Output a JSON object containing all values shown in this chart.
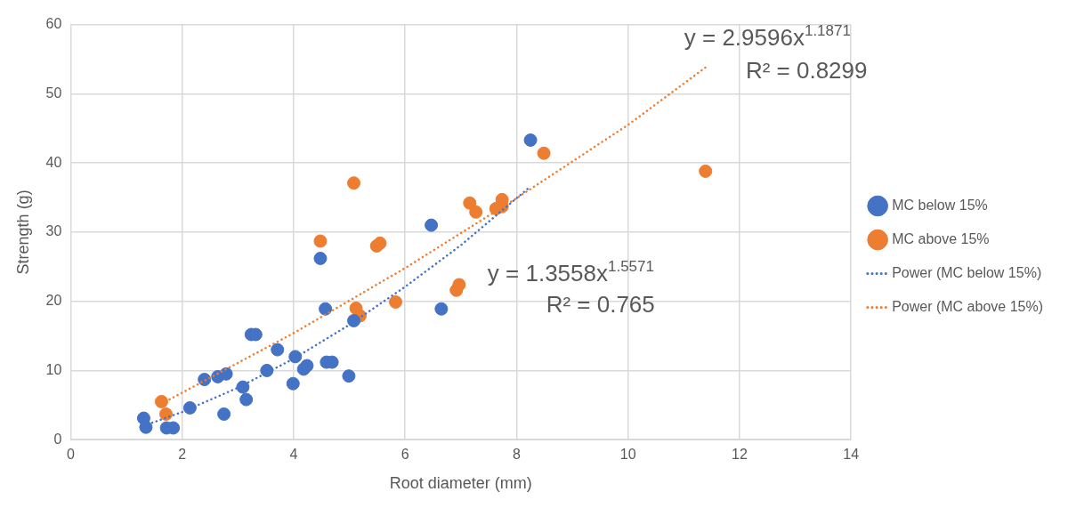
{
  "chart_data": {
    "type": "scatter",
    "xlabel": "Root diameter (mm)",
    "ylabel": "Strength (g)",
    "xlim": [
      0,
      14
    ],
    "xticks": [
      0,
      2,
      4,
      6,
      8,
      10,
      12,
      14
    ],
    "ylim": [
      0,
      60
    ],
    "yticks": [
      0,
      10,
      20,
      30,
      40,
      50,
      60
    ],
    "grid": true,
    "legend": "right",
    "marker": "circle",
    "series": [
      {
        "name": "MC below 15%",
        "color": "#4472c4",
        "type": "scatter",
        "x": [
          1.31,
          1.35,
          1.72,
          1.84,
          2.14,
          2.4,
          2.64,
          2.75,
          2.79,
          3.09,
          3.15,
          3.24,
          3.32,
          3.52,
          3.71,
          3.99,
          4.03,
          4.18,
          4.24,
          4.48,
          4.57,
          4.59,
          4.69,
          4.99,
          5.08,
          6.47,
          6.65,
          8.25
        ],
        "values": [
          3.1,
          1.8,
          1.7,
          1.7,
          4.6,
          8.7,
          9.1,
          3.7,
          9.5,
          7.6,
          5.8,
          15.2,
          15.2,
          10.0,
          13.0,
          8.1,
          12.0,
          10.2,
          10.7,
          26.2,
          18.9,
          11.2,
          11.2,
          9.2,
          17.2,
          31.0,
          18.9,
          43.3
        ]
      },
      {
        "name": "MC above 15%",
        "color": "#ed7d31",
        "type": "scatter",
        "x": [
          1.63,
          1.71,
          4.48,
          5.08,
          5.12,
          5.19,
          5.49,
          5.55,
          5.83,
          6.92,
          6.97,
          7.16,
          7.27,
          7.63,
          7.74,
          7.74,
          8.49,
          11.39
        ],
        "values": [
          5.5,
          3.7,
          28.7,
          37.1,
          19.0,
          17.9,
          28.0,
          28.4,
          19.9,
          21.6,
          22.4,
          34.2,
          32.9,
          33.4,
          34.7,
          33.7,
          41.4,
          38.8
        ]
      },
      {
        "name": "Power (MC below 15%)",
        "color": "#4472c4",
        "type": "line",
        "line_style": "dotted",
        "marker": "none",
        "x": [
          1.31,
          2,
          3,
          4,
          5,
          6,
          7,
          8.25
        ],
        "values": [
          2.0,
          4.0,
          7.5,
          11.7,
          16.6,
          22.1,
          28.1,
          36.6
        ]
      },
      {
        "name": "Power (MC above 15%)",
        "color": "#ed7d31",
        "type": "line",
        "line_style": "dotted",
        "marker": "none",
        "x": [
          1.63,
          4,
          6,
          8,
          10,
          11.39
        ],
        "values": [
          5.2,
          15.4,
          24.8,
          34.9,
          45.5,
          53.8
        ]
      }
    ],
    "annotations": [
      "y = 2.9596x$^{1.1871}$",
      "R² = 0.8299",
      "y = 1.3558x$^{1.5571}$",
      "R² = 0.765"
    ]
  }
}
